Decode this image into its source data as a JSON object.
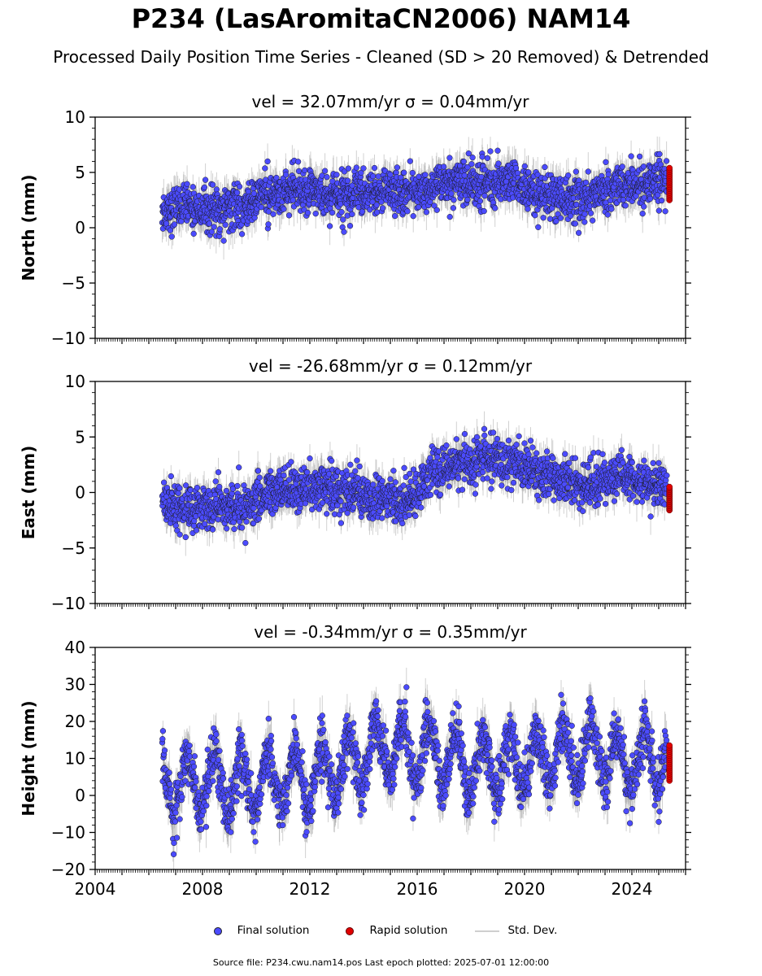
{
  "title": "P234 (LasAromitaCN2006) NAM14",
  "subtitle": "Processed Daily Position Time Series - Cleaned (SD > 20 Removed) & Detrended",
  "legend": {
    "final": "Final solution",
    "rapid": "Rapid solution",
    "std": "Std. Dev."
  },
  "footer": "Source file: P234.cwu.nam14.pos  Last epoch plotted: 2025-07-01 12:00:00",
  "colors": {
    "final": "#4b4bff",
    "rapid": "#e00000",
    "std": "#9a9a9a"
  },
  "chart_data": [
    {
      "type": "scatter",
      "panel_title": "vel = 32.07mm/yr   σ = 0.04mm/yr",
      "ylabel": "North (mm)",
      "xlim": [
        2004,
        2026
      ],
      "ylim": [
        -10,
        10
      ],
      "yticks": [
        -10,
        -5,
        0,
        5,
        10
      ],
      "xticks": [],
      "final_start": 2006.5,
      "final_end": 2025.3,
      "final_trend": [
        [
          2006.5,
          1.5
        ],
        [
          2007.5,
          1.8
        ],
        [
          2008.5,
          1.6
        ],
        [
          2009.5,
          2.0
        ],
        [
          2010.5,
          3.0
        ],
        [
          2011.5,
          3.3
        ],
        [
          2012.5,
          3.0
        ],
        [
          2013.5,
          3.0
        ],
        [
          2014.5,
          3.3
        ],
        [
          2015.5,
          3.3
        ],
        [
          2016.5,
          3.7
        ],
        [
          2017.5,
          4.0
        ],
        [
          2018.5,
          4.0
        ],
        [
          2019.5,
          4.0
        ],
        [
          2020.0,
          3.8
        ],
        [
          2020.5,
          2.6
        ],
        [
          2021.5,
          2.7
        ],
        [
          2022.5,
          3.0
        ],
        [
          2023.5,
          3.8
        ],
        [
          2024.5,
          4.0
        ],
        [
          2025.3,
          4.3
        ]
      ],
      "noise_sd": 1.0,
      "rapid_x": 2025.4,
      "rapid_range": [
        2.5,
        5.4
      ]
    },
    {
      "type": "scatter",
      "panel_title": "vel = -26.68mm/yr   σ = 0.12mm/yr",
      "ylabel": "East (mm)",
      "xlim": [
        2004,
        2026
      ],
      "ylim": [
        -10,
        10
      ],
      "yticks": [
        -10,
        -5,
        0,
        5,
        10
      ],
      "xticks": [],
      "final_start": 2006.5,
      "final_end": 2025.3,
      "final_trend": [
        [
          2006.5,
          -1.2
        ],
        [
          2007.5,
          -1.4
        ],
        [
          2008.5,
          -1.5
        ],
        [
          2009.5,
          -1.3
        ],
        [
          2010.5,
          0.2
        ],
        [
          2011.5,
          0.7
        ],
        [
          2012.5,
          0.5
        ],
        [
          2013.5,
          0.3
        ],
        [
          2014.5,
          -0.5
        ],
        [
          2015.5,
          -0.7
        ],
        [
          2016.5,
          1.5
        ],
        [
          2017.5,
          2.6
        ],
        [
          2018.5,
          2.9
        ],
        [
          2019.5,
          2.8
        ],
        [
          2020.5,
          1.6
        ],
        [
          2021.5,
          1.0
        ],
        [
          2022.5,
          0.7
        ],
        [
          2023.5,
          1.6
        ],
        [
          2024.5,
          0.9
        ],
        [
          2025.3,
          0.4
        ]
      ],
      "noise_sd": 1.0,
      "rapid_x": 2025.4,
      "rapid_range": [
        -1.6,
        0.5
      ]
    },
    {
      "type": "scatter",
      "panel_title": "vel = -0.34mm/yr   σ = 0.35mm/yr",
      "ylabel": "Height (mm)",
      "xlim": [
        2004,
        2026
      ],
      "ylim": [
        -20,
        40
      ],
      "yticks": [
        -20,
        -10,
        0,
        10,
        20,
        30,
        40
      ],
      "xticks": [
        "2004",
        "2008",
        "2012",
        "2016",
        "2020",
        "2024"
      ],
      "final_start": 2006.5,
      "final_end": 2025.3,
      "final_trend": [
        [
          2006.5,
          2.0
        ],
        [
          2008.5,
          3.0
        ],
        [
          2010.5,
          4.0
        ],
        [
          2012.5,
          5.0
        ],
        [
          2014.5,
          12.0
        ],
        [
          2016.5,
          12.0
        ],
        [
          2018.5,
          8.0
        ],
        [
          2020.5,
          10.0
        ],
        [
          2022.5,
          13.0
        ],
        [
          2023.5,
          8.0
        ],
        [
          2024.5,
          10.0
        ],
        [
          2025.3,
          9.0
        ]
      ],
      "seasonal_amplitude": 8.0,
      "noise_sd": 3.5,
      "rapid_x": 2025.4,
      "rapid_range": [
        4.0,
        13.5
      ]
    }
  ]
}
